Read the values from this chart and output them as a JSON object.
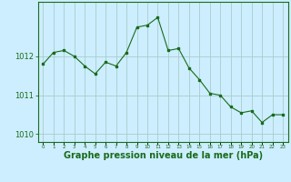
{
  "x": [
    0,
    1,
    2,
    3,
    4,
    5,
    6,
    7,
    8,
    9,
    10,
    11,
    12,
    13,
    14,
    15,
    16,
    17,
    18,
    19,
    20,
    21,
    22,
    23
  ],
  "y": [
    1011.8,
    1012.1,
    1012.15,
    1012.0,
    1011.75,
    1011.55,
    1011.85,
    1011.75,
    1012.1,
    1012.75,
    1012.8,
    1013.0,
    1012.15,
    1012.2,
    1011.7,
    1011.4,
    1011.05,
    1011.0,
    1010.7,
    1010.55,
    1010.6,
    1010.3,
    1010.5,
    1010.5
  ],
  "line_color": "#1a6b1a",
  "marker_color": "#1a6b1a",
  "bg_color": "#cceeff",
  "grid_color": "#aacccc",
  "border_color": "#1a6b1a",
  "xlabel": "Graphe pression niveau de la mer (hPa)",
  "xlabel_color": "#1a6b1a",
  "xlabel_fontsize": 7,
  "yticks": [
    1010,
    1011,
    1012
  ],
  "ylim": [
    1009.8,
    1013.4
  ],
  "xlim": [
    -0.5,
    23.5
  ]
}
